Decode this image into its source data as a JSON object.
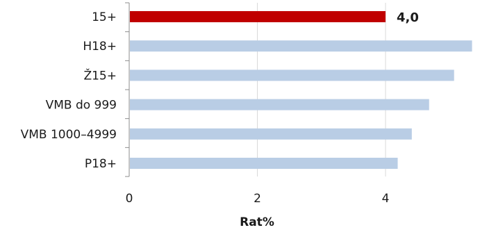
{
  "chart_data": {
    "type": "bar",
    "orientation": "horizontal",
    "categories": [
      "15+",
      "H18+",
      "Ž15+",
      "VMB do 999",
      "VMB 1000–4999",
      "P18+"
    ],
    "values": [
      4.0,
      5.35,
      5.07,
      4.68,
      4.41,
      4.19
    ],
    "data_labels": [
      "4,0",
      "",
      "",
      "",
      "",
      ""
    ],
    "highlight_color": "#c00000",
    "bar_color": "#b9cde5",
    "xlabel": "Rat%",
    "ylabel": "",
    "xlim": [
      0,
      5.5
    ],
    "xticks": [
      0,
      2,
      4
    ],
    "xtick_labels": [
      "0",
      "2",
      "4"
    ],
    "grid": "vertical",
    "legend": "none"
  }
}
